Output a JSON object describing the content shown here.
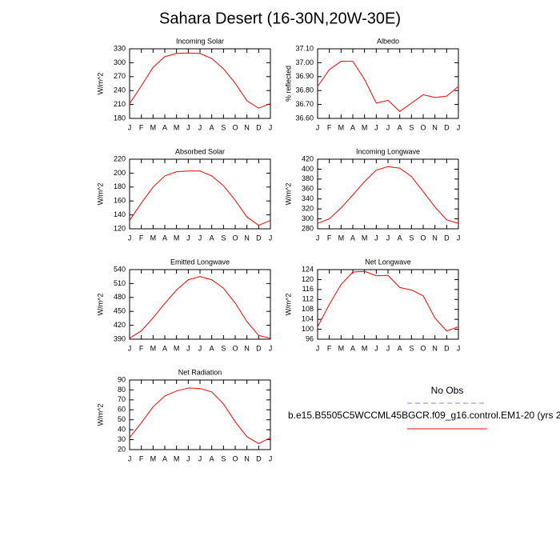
{
  "title": "Sahara Desert (16-30N,20W-30E)",
  "legend": [
    {
      "name": "No Obs",
      "color": "#8080ff",
      "dash": true
    },
    {
      "name": "b.e15.B5505C5WCCML45BGCR.f09_g16.control.EM1-20 (yrs 2",
      "color": "#ff0000",
      "dash": false
    }
  ],
  "chart_data": [
    {
      "type": "line",
      "title": "Incoming Solar",
      "y_label": "W/m^2",
      "color": "#ff0000",
      "categories": [
        "J",
        "F",
        "M",
        "A",
        "M",
        "J",
        "J",
        "A",
        "S",
        "O",
        "N",
        "D",
        "J"
      ],
      "values": [
        212,
        250,
        290,
        313,
        320,
        321,
        320,
        309,
        287,
        256,
        218,
        202,
        212
      ],
      "ylim": [
        180,
        330
      ],
      "yticks": [
        180,
        210,
        240,
        270,
        300,
        330
      ]
    },
    {
      "type": "line",
      "title": "Albedo",
      "y_label": "% reflected",
      "color": "#ff0000",
      "categories": [
        "J",
        "F",
        "M",
        "A",
        "M",
        "J",
        "J",
        "A",
        "S",
        "O",
        "N",
        "D",
        "J"
      ],
      "values": [
        36.83,
        36.95,
        37.01,
        37.01,
        36.88,
        36.71,
        36.73,
        36.65,
        36.71,
        36.77,
        36.75,
        36.76,
        36.83
      ],
      "ylim": [
        36.6,
        37.1
      ],
      "yticks": [
        {
          "value": 36.6,
          "label": "36.60"
        },
        {
          "value": 36.7,
          "label": "36.70"
        },
        {
          "value": 36.8,
          "label": "36.80"
        },
        {
          "value": 36.9,
          "label": "36.90"
        },
        {
          "value": 37.0,
          "label": "37.00"
        },
        {
          "value": 37.1,
          "label": "37.10"
        }
      ]
    },
    {
      "type": "line",
      "title": "Absorbed Solar",
      "y_label": "W/m^2",
      "color": "#ff0000",
      "categories": [
        "J",
        "F",
        "M",
        "A",
        "M",
        "J",
        "J",
        "A",
        "S",
        "O",
        "N",
        "D",
        "J"
      ],
      "values": [
        132,
        157,
        180,
        196,
        202,
        203,
        203,
        196,
        182,
        161,
        137,
        125,
        132
      ],
      "ylim": [
        120,
        220
      ],
      "yticks": [
        120,
        140,
        160,
        180,
        200,
        220
      ]
    },
    {
      "type": "line",
      "title": "Incoming Longwave",
      "y_label": "W/m^2",
      "color": "#ff0000",
      "categories": [
        "J",
        "F",
        "M",
        "A",
        "M",
        "J",
        "J",
        "A",
        "S",
        "O",
        "N",
        "D",
        "J"
      ],
      "values": [
        291,
        300,
        322,
        348,
        375,
        398,
        405,
        402,
        385,
        355,
        324,
        298,
        291
      ],
      "ylim": [
        280,
        420
      ],
      "yticks": [
        280,
        300,
        320,
        340,
        360,
        380,
        400,
        420
      ]
    },
    {
      "type": "line",
      "title": "Emitted Longwave",
      "y_label": "W/m^2",
      "color": "#ff0000",
      "categories": [
        "J",
        "F",
        "M",
        "A",
        "M",
        "J",
        "J",
        "A",
        "S",
        "O",
        "N",
        "D",
        "J"
      ],
      "values": [
        392,
        408,
        436,
        467,
        496,
        518,
        525,
        518,
        500,
        468,
        428,
        398,
        392
      ],
      "ylim": [
        390,
        540
      ],
      "yticks": [
        390,
        420,
        450,
        480,
        510,
        540
      ]
    },
    {
      "type": "line",
      "title": "Net Longwave",
      "y_label": "W/m^2",
      "color": "#ff0000",
      "categories": [
        "J",
        "F",
        "M",
        "A",
        "M",
        "J",
        "J",
        "A",
        "S",
        "O",
        "N",
        "D",
        "J"
      ],
      "values": [
        101,
        110,
        118,
        123,
        123.3,
        121.5,
        121.7,
        116.8,
        115.8,
        113.5,
        104.5,
        99.3,
        101
      ],
      "ylim": [
        96,
        124
      ],
      "yticks": [
        96,
        100,
        104,
        108,
        112,
        116,
        120,
        124
      ]
    },
    {
      "type": "line",
      "title": "Net Radiation",
      "y_label": "W/m^2",
      "color": "#ff0000",
      "categories": [
        "J",
        "F",
        "M",
        "A",
        "M",
        "J",
        "J",
        "A",
        "S",
        "O",
        "N",
        "D",
        "J"
      ],
      "values": [
        32,
        47,
        63,
        74,
        79,
        82,
        81.5,
        78,
        66,
        48,
        33,
        26,
        32
      ],
      "ylim": [
        20,
        90
      ],
      "yticks": [
        20,
        30,
        40,
        50,
        60,
        70,
        80,
        90
      ]
    }
  ]
}
